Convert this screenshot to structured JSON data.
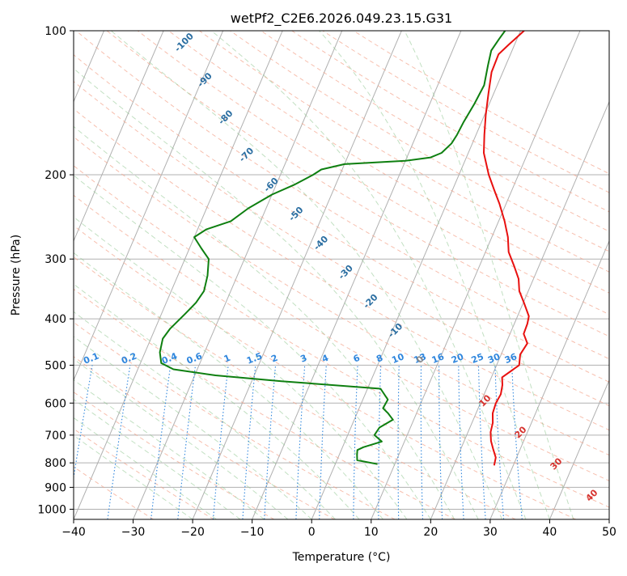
{
  "chart_data": {
    "type": "line",
    "title": "wetPf2_C2E6.2026.049.23.15.G31",
    "xlabel": "Temperature (°C)",
    "ylabel": "Pressure (hPa)",
    "xlim": [
      -40,
      50
    ],
    "ylim": [
      1050,
      100
    ],
    "x_ticks": [
      -40,
      -30,
      -20,
      -10,
      0,
      10,
      20,
      30,
      40,
      50
    ],
    "x_tick_labels": [
      "−40",
      "−30",
      "−20",
      "−10",
      "0",
      "10",
      "20",
      "30",
      "40",
      "50"
    ],
    "y_ticks": [
      1000,
      900,
      800,
      700,
      600,
      500,
      400,
      300,
      200,
      100
    ],
    "y_tick_labels": [
      "1000",
      "900",
      "800",
      "700",
      "600",
      "500",
      "400",
      "300",
      "200",
      "100"
    ],
    "dry_adiabat_labels": [
      {
        "value": -100,
        "label": "-100"
      },
      {
        "value": -90,
        "label": "-90"
      },
      {
        "value": -80,
        "label": "-80"
      },
      {
        "value": -70,
        "label": "-70"
      },
      {
        "value": -60,
        "label": "-60"
      },
      {
        "value": -50,
        "label": "-50"
      },
      {
        "value": -40,
        "label": "-40"
      },
      {
        "value": -30,
        "label": "-30"
      },
      {
        "value": -20,
        "label": "-20"
      },
      {
        "value": -10,
        "label": "-10"
      },
      {
        "value": 0,
        "label": "0"
      },
      {
        "value": 10,
        "label": "10"
      },
      {
        "value": 20,
        "label": "20"
      },
      {
        "value": 30,
        "label": "30"
      },
      {
        "value": 40,
        "label": "40"
      }
    ],
    "mixing_ratio_labels": [
      "0.1",
      "0.2",
      "0.4",
      "0.6",
      "1",
      "1.5",
      "2",
      "3",
      "4",
      "6",
      "8",
      "10",
      "13",
      "16",
      "20",
      "25",
      "30",
      "36"
    ],
    "series": [
      {
        "name": "Temperature",
        "color": "#e8100f",
        "points": [
          [
            26.8,
            810
          ],
          [
            26.5,
            780
          ],
          [
            25.5,
            750
          ],
          [
            24.5,
            720
          ],
          [
            23.8,
            690
          ],
          [
            23.5,
            660
          ],
          [
            22.8,
            630
          ],
          [
            22.6,
            600
          ],
          [
            22.8,
            575
          ],
          [
            22.4,
            550
          ],
          [
            21.8,
            530
          ],
          [
            22.8,
            515
          ],
          [
            23.8,
            500
          ],
          [
            23.2,
            475
          ],
          [
            23.6,
            450
          ],
          [
            22.3,
            430
          ],
          [
            22.2,
            410
          ],
          [
            21.9,
            395
          ],
          [
            20.1,
            370
          ],
          [
            18.5,
            350
          ],
          [
            17.5,
            330
          ],
          [
            15.8,
            310
          ],
          [
            13.9,
            290
          ],
          [
            12.7,
            270
          ],
          [
            11.0,
            250
          ],
          [
            8.9,
            230
          ],
          [
            7.0,
            215
          ],
          [
            5.0,
            200
          ],
          [
            2.6,
            180
          ],
          [
            1.4,
            165
          ],
          [
            0.2,
            150
          ],
          [
            -0.9,
            135
          ],
          [
            -1.9,
            122
          ],
          [
            -2.0,
            112
          ],
          [
            -1.0,
            107
          ],
          [
            0.6,
            100
          ]
        ]
      },
      {
        "name": "Dewpoint",
        "color": "#0e7f10",
        "points": [
          [
            7.1,
            805
          ],
          [
            3.4,
            790
          ],
          [
            3.0,
            770
          ],
          [
            2.7,
            752
          ],
          [
            3.5,
            742
          ],
          [
            6.2,
            722
          ],
          [
            4.5,
            700
          ],
          [
            4.8,
            675
          ],
          [
            6.5,
            650
          ],
          [
            5.2,
            630
          ],
          [
            4.0,
            615
          ],
          [
            4.2,
            590
          ],
          [
            2.2,
            560
          ],
          [
            -15.0,
            540
          ],
          [
            -26.5,
            525
          ],
          [
            -34.0,
            510
          ],
          [
            -36.5,
            495
          ],
          [
            -37.5,
            470
          ],
          [
            -38.0,
            440
          ],
          [
            -37.5,
            420
          ],
          [
            -36.0,
            390
          ],
          [
            -35.0,
            370
          ],
          [
            -34.5,
            350
          ],
          [
            -35.0,
            325
          ],
          [
            -36.0,
            300
          ],
          [
            -38.0,
            285
          ],
          [
            -40.0,
            270
          ],
          [
            -38.5,
            260
          ],
          [
            -35.0,
            250
          ],
          [
            -33.0,
            235
          ],
          [
            -30.0,
            220
          ],
          [
            -27.0,
            210
          ],
          [
            -24.5,
            200
          ],
          [
            -23.5,
            195
          ],
          [
            -20.0,
            190
          ],
          [
            -10.0,
            187
          ],
          [
            -6.0,
            184
          ],
          [
            -4.5,
            180
          ],
          [
            -3.5,
            172
          ],
          [
            -3.2,
            165
          ],
          [
            -3.0,
            155
          ],
          [
            -2.5,
            142
          ],
          [
            -2.2,
            130
          ],
          [
            -3.0,
            118
          ],
          [
            -3.5,
            110
          ],
          [
            -3.0,
            104
          ],
          [
            -2.6,
            100
          ]
        ]
      }
    ]
  }
}
